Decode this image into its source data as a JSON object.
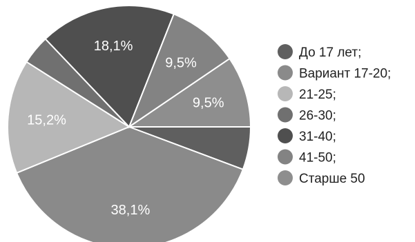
{
  "chart_data": {
    "type": "pie",
    "start_angle_deg": 0,
    "direction": "clockwise",
    "slices": [
      {
        "label": "До 17 лет;",
        "value": 5.7,
        "display": "",
        "color": "#5f5f5f"
      },
      {
        "label": "Вариант 17-20;",
        "value": 38.1,
        "display": "38,1%",
        "color": "#8a8a8a"
      },
      {
        "label": "21-25;",
        "value": 15.2,
        "display": "15,2%",
        "color": "#b7b7b7"
      },
      {
        "label": "26-30;",
        "value": 3.9,
        "display": "",
        "color": "#707070"
      },
      {
        "label": "31-40;",
        "value": 18.1,
        "display": "18,1%",
        "color": "#4f4f4f"
      },
      {
        "label": "41-50;",
        "value": 9.5,
        "display": "9,5%",
        "color": "#838383"
      },
      {
        "label": "Старше 50",
        "value": 9.5,
        "display": "9,5%",
        "color": "#8e8e8e"
      }
    ],
    "title": "",
    "legend_position": "right"
  }
}
